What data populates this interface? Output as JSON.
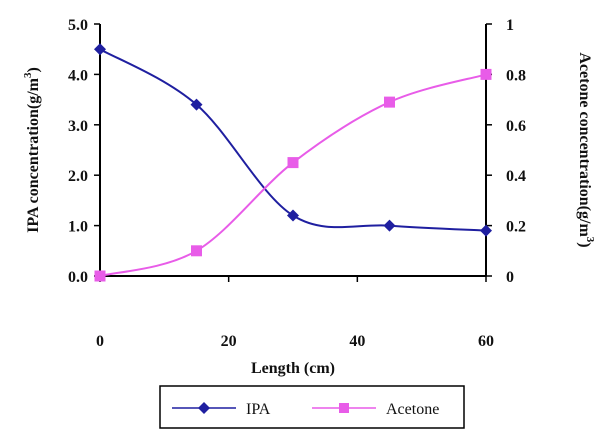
{
  "chart_data": {
    "type": "line",
    "x_label": "Length (cm)",
    "y_left_label": "IPA concentration(g/m",
    "y_right_label": "Acetone concentration(g/m",
    "label_superscript": "3",
    "label_close": ")",
    "x_ticks": [
      "0",
      "20",
      "40",
      "60"
    ],
    "y_left_ticks": [
      "0.0",
      "1.0",
      "2.0",
      "3.0",
      "4.0",
      "5.0"
    ],
    "y_right_ticks": [
      "0",
      "0.2",
      "0.4",
      "0.6",
      "0.8",
      "1"
    ],
    "xlim": [
      0,
      60
    ],
    "ylim_left": [
      0,
      5
    ],
    "ylim_right": [
      0,
      1
    ],
    "grid": false,
    "legend_position": "bottom",
    "series": [
      {
        "name": "IPA",
        "axis": "left",
        "color": "#1f1fa0",
        "marker": "diamond",
        "smooth": true,
        "x": [
          0,
          15,
          30,
          45,
          60
        ],
        "y": [
          4.5,
          3.4,
          1.2,
          1.0,
          0.9
        ]
      },
      {
        "name": "Acetone",
        "axis": "right",
        "color": "#e85ce8",
        "marker": "square",
        "smooth": true,
        "x": [
          0,
          15,
          30,
          45,
          60
        ],
        "y": [
          0.0,
          0.1,
          0.45,
          0.69,
          0.8
        ]
      }
    ]
  }
}
